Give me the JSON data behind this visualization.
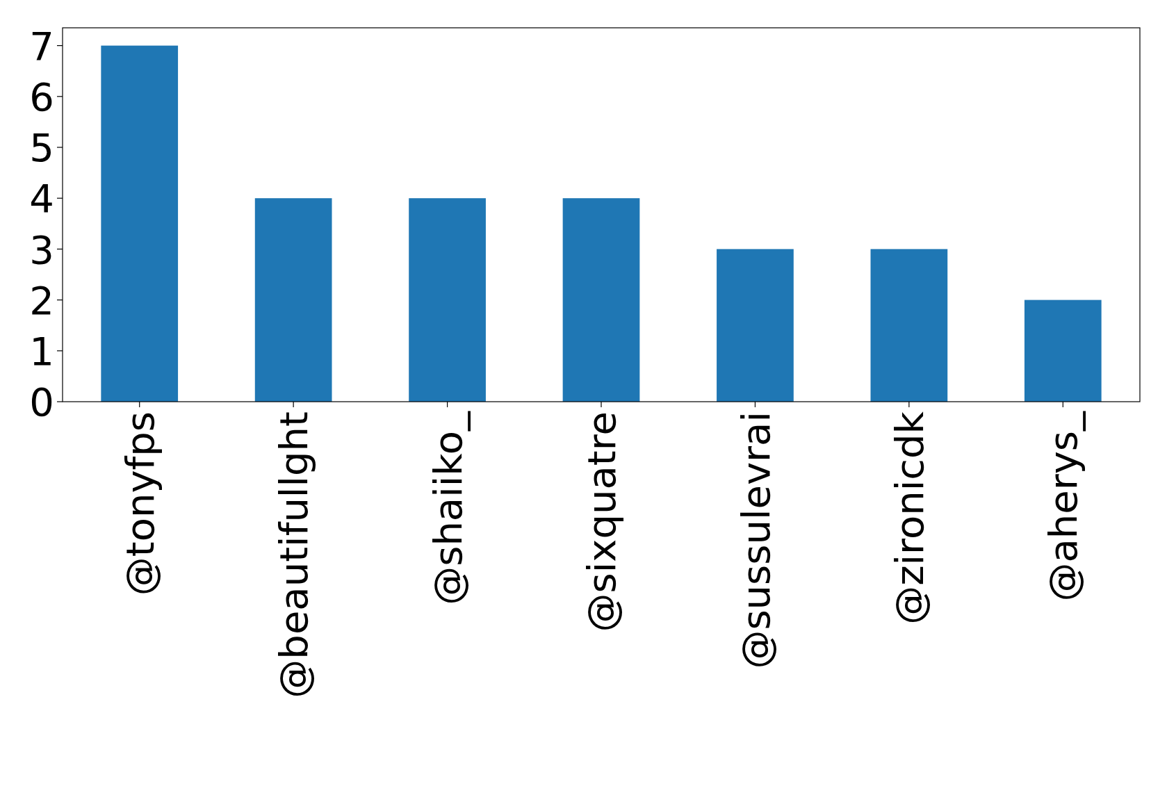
{
  "chart_data": {
    "type": "bar",
    "categories": [
      "@tonyfps",
      "@beautifullght",
      "@shaiiko_",
      "@sixquatre",
      "@sussulevrai",
      "@zironicdk",
      "@aherys_"
    ],
    "values": [
      7,
      4,
      4,
      4,
      3,
      3,
      2
    ],
    "color": "#1f77b4",
    "ylim": [
      0,
      7.35
    ],
    "yticks": [
      0,
      1,
      2,
      3,
      4,
      5,
      6,
      7
    ]
  }
}
